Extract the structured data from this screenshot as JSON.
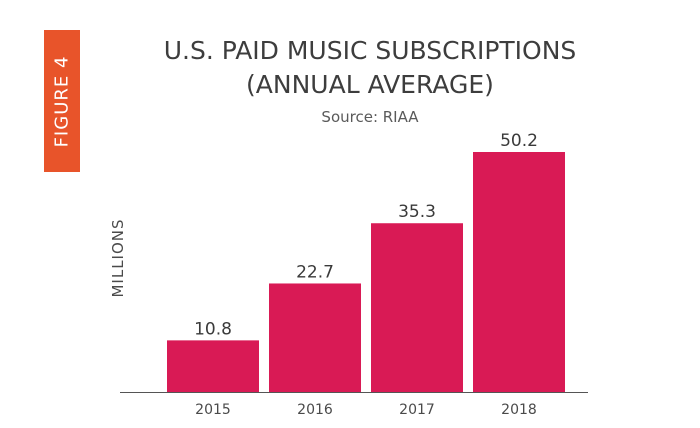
{
  "figure_label": "FIGURE 4",
  "chart_data": {
    "type": "bar",
    "title_line1": "U.S. PAID MUSIC SUBSCRIPTIONS",
    "title_line2": "(ANNUAL AVERAGE)",
    "subtitle": "Source: RIAA",
    "xlabel": "",
    "ylabel": "MILLIONS",
    "categories": [
      "2015",
      "2016",
      "2017",
      "2018"
    ],
    "values": [
      10.8,
      22.7,
      35.3,
      50.2
    ],
    "value_labels": [
      "10.8",
      "22.7",
      "35.3",
      "50.2"
    ],
    "ylim": [
      0,
      52
    ],
    "grid": false,
    "bar_color": "#d91a55",
    "badge_color": "#e8542a"
  }
}
